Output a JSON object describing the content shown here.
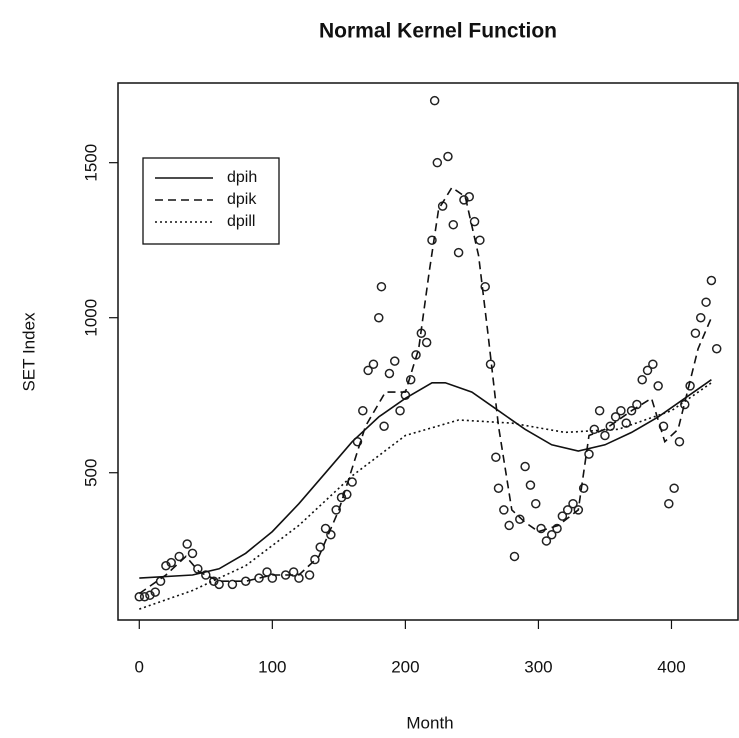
{
  "chart_data": {
    "type": "scatter",
    "title": "Normal Kernel Function",
    "x_label": "Month",
    "y_label": "SET Index",
    "xlim": [
      -16,
      450
    ],
    "ylim": [
      25,
      1757
    ],
    "xticks": [
      0,
      100,
      200,
      300,
      400
    ],
    "yticks": [
      500,
      1000,
      1500
    ],
    "legend": "top-left",
    "color": "#222222",
    "points": {
      "x": [
        0,
        4,
        8,
        12,
        16,
        20,
        24,
        30,
        36,
        40,
        44,
        50,
        56,
        60,
        70,
        80,
        90,
        96,
        100,
        110,
        116,
        120,
        128,
        132,
        136,
        140,
        144,
        148,
        152,
        156,
        160,
        164,
        168,
        172,
        176,
        180,
        182,
        184,
        188,
        192,
        196,
        200,
        204,
        208,
        212,
        216,
        220,
        222,
        224,
        228,
        232,
        236,
        240,
        244,
        248,
        252,
        256,
        260,
        264,
        268,
        270,
        274,
        278,
        282,
        286,
        290,
        294,
        298,
        302,
        306,
        310,
        314,
        318,
        322,
        326,
        330,
        334,
        338,
        342,
        346,
        350,
        354,
        358,
        362,
        366,
        370,
        374,
        378,
        382,
        386,
        390,
        394,
        398,
        402,
        406,
        410,
        414,
        418,
        422,
        426,
        430,
        434
      ],
      "values": [
        100,
        100,
        105,
        115,
        150,
        200,
        210,
        230,
        270,
        240,
        190,
        170,
        150,
        140,
        140,
        150,
        160,
        180,
        160,
        170,
        180,
        160,
        170,
        220,
        260,
        320,
        300,
        380,
        420,
        430,
        470,
        600,
        700,
        830,
        850,
        1000,
        1100,
        650,
        820,
        860,
        700,
        750,
        800,
        880,
        950,
        920,
        1250,
        1700,
        1500,
        1360,
        1520,
        1300,
        1210,
        1380,
        1390,
        1310,
        1250,
        1100,
        850,
        550,
        450,
        380,
        330,
        230,
        350,
        520,
        460,
        400,
        320,
        280,
        300,
        320,
        360,
        380,
        400,
        380,
        450,
        560,
        640,
        700,
        620,
        650,
        680,
        700,
        660,
        700,
        720,
        800,
        830,
        850,
        780,
        650,
        400,
        450,
        600,
        720,
        780,
        950,
        1000,
        1050,
        1120,
        900
      ]
    },
    "series": [
      {
        "name": "dpih",
        "dash": "solid",
        "color": "#111111",
        "x": [
          0,
          40,
          60,
          80,
          100,
          120,
          140,
          160,
          180,
          200,
          220,
          230,
          250,
          270,
          290,
          310,
          330,
          350,
          370,
          390,
          410,
          430
        ],
        "values": [
          160,
          170,
          190,
          240,
          310,
          400,
          500,
          600,
          680,
          740,
          790,
          790,
          760,
          700,
          640,
          590,
          570,
          590,
          630,
          680,
          740,
          800
        ]
      },
      {
        "name": "dpik",
        "dash": "dashed",
        "color": "#111111",
        "x": [
          0,
          20,
          35,
          45,
          60,
          80,
          100,
          120,
          135,
          150,
          170,
          185,
          200,
          210,
          218,
          225,
          235,
          245,
          255,
          262,
          270,
          280,
          290,
          300,
          315,
          330,
          338,
          350,
          370,
          385,
          395,
          405,
          420,
          430
        ],
        "values": [
          110,
          170,
          230,
          180,
          150,
          150,
          170,
          170,
          230,
          380,
          650,
          760,
          760,
          900,
          1150,
          1350,
          1420,
          1390,
          1200,
          950,
          650,
          380,
          340,
          310,
          330,
          380,
          620,
          640,
          700,
          740,
          600,
          640,
          900,
          1000
        ]
      },
      {
        "name": "dpill",
        "dash": "dotted",
        "color": "#111111",
        "x": [
          0,
          40,
          80,
          120,
          160,
          200,
          240,
          280,
          320,
          360,
          400,
          430
        ],
        "values": [
          60,
          120,
          200,
          330,
          490,
          620,
          670,
          660,
          630,
          640,
          700,
          790
        ]
      }
    ]
  }
}
